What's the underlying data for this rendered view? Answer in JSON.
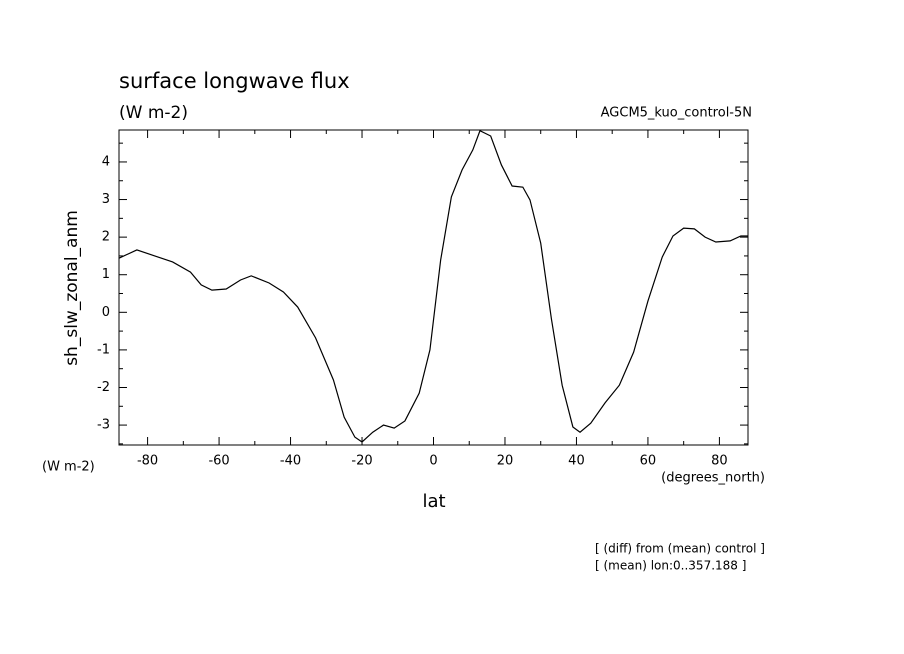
{
  "chart_data": {
    "type": "line",
    "title": "surface longwave flux",
    "subtitle": "(W m-2)",
    "dataset_label": "AGCM5_kuo_control-5N",
    "y_label": "sh_slw_zonal_anm",
    "y_units": "(W m-2)",
    "x_label": "lat",
    "x_units": "(degrees_north)",
    "notes": [
      "[ (diff) from (mean) control ]",
      "[ (mean) lon:0..357.188 ]"
    ],
    "x": [
      -88,
      -83,
      -78,
      -73,
      -68,
      -65,
      -62,
      -58,
      -54,
      -51,
      -46,
      -42,
      -38,
      -33,
      -28,
      -25,
      -22,
      -20,
      -17,
      -14,
      -11,
      -8,
      -4,
      -1,
      2,
      5,
      8,
      11,
      13,
      16,
      19,
      22,
      25,
      27,
      30,
      33,
      36,
      39,
      41,
      44,
      48,
      52,
      56,
      60,
      64,
      67,
      70,
      73,
      76,
      79,
      83,
      86,
      88
    ],
    "series": [
      {
        "color": "#000000",
        "values": [
          1.44,
          1.66,
          1.5,
          1.34,
          1.07,
          0.73,
          0.59,
          0.62,
          0.86,
          0.97,
          0.78,
          0.54,
          0.14,
          -0.68,
          -1.8,
          -2.79,
          -3.32,
          -3.45,
          -3.19,
          -3.0,
          -3.08,
          -2.89,
          -2.15,
          -1.0,
          1.39,
          3.07,
          3.79,
          4.32,
          4.83,
          4.69,
          3.92,
          3.36,
          3.33,
          2.99,
          1.84,
          -0.18,
          -1.94,
          -3.05,
          -3.19,
          -2.95,
          -2.41,
          -1.94,
          -1.06,
          0.3,
          1.47,
          2.03,
          2.24,
          2.22,
          2.0,
          1.87,
          1.9,
          2.03,
          2.03
        ]
      }
    ],
    "xlim": [
      -88,
      88
    ],
    "ylim": [
      -3.53,
      4.85
    ],
    "xticks": [
      -80,
      -60,
      -40,
      -20,
      0,
      20,
      40,
      60,
      80
    ],
    "yticks": [
      -3,
      -2,
      -1,
      0,
      1,
      2,
      3,
      4
    ],
    "xminorticks": [
      -70,
      -50,
      -30,
      -10,
      10,
      30,
      50,
      70
    ],
    "yminorticks": [
      -3.5,
      -2.5,
      -1.5,
      -0.5,
      0.5,
      1.5,
      2.5,
      3.5,
      4.5
    ]
  }
}
